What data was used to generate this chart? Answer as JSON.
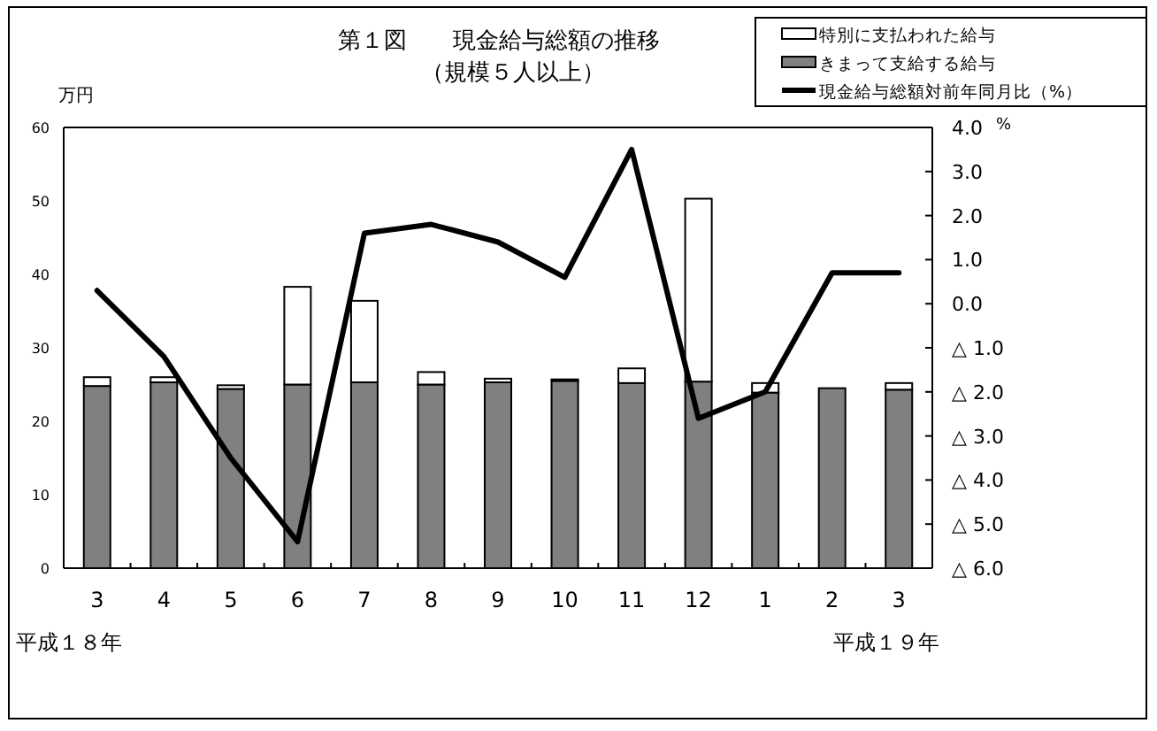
{
  "chart_data": {
    "type": "bar",
    "title": "第１図　　現金給与総額の推移",
    "subtitle": "（規模５人以上）",
    "ylabel": "万円",
    "y2label": "%",
    "annotations": [
      "平成１８年",
      "平成１９年"
    ],
    "categories": [
      "3",
      "4",
      "5",
      "6",
      "7",
      "8",
      "9",
      "10",
      "11",
      "12",
      "1",
      "2",
      "3"
    ],
    "stacked": true,
    "legend": "top right",
    "series": [
      {
        "name": "きまって支給する給与",
        "color": "#808080",
        "values": [
          24.8,
          25.3,
          24.4,
          25.0,
          25.3,
          25.0,
          25.3,
          25.5,
          25.2,
          25.4,
          23.9,
          24.5,
          24.3
        ]
      },
      {
        "name": "特別に支払われた給与",
        "color": "#ffffff",
        "values": [
          1.2,
          0.7,
          0.5,
          13.3,
          11.1,
          1.7,
          0.5,
          0.2,
          2.0,
          24.9,
          1.3,
          0,
          0.9
        ]
      },
      {
        "name": "現金給与総額対前年同月比（%）",
        "type": "line",
        "axis": "y2",
        "color": "#000000",
        "values": [
          0.3,
          -1.2,
          -3.5,
          -5.4,
          1.6,
          1.8,
          1.4,
          0.6,
          3.5,
          -2.6,
          -2.0,
          0.7,
          0.7
        ]
      }
    ],
    "ylim": [
      0,
      60
    ],
    "yticks": [
      0,
      10,
      20,
      30,
      40,
      50,
      60
    ],
    "y2lim": [
      -6,
      4
    ],
    "y2ticks": [
      {
        "value": 4,
        "label": "4.0"
      },
      {
        "value": 3,
        "label": "3.0"
      },
      {
        "value": 2,
        "label": "2.0"
      },
      {
        "value": 1,
        "label": "1.0"
      },
      {
        "value": 0,
        "label": "0.0"
      },
      {
        "value": -1,
        "label": "△ 1.0"
      },
      {
        "value": -2,
        "label": "△ 2.0"
      },
      {
        "value": -3,
        "label": "△ 3.0"
      },
      {
        "value": -4,
        "label": "△ 4.0"
      },
      {
        "value": -5,
        "label": "△ 5.0"
      },
      {
        "value": -6,
        "label": "△ 6.0"
      }
    ]
  }
}
